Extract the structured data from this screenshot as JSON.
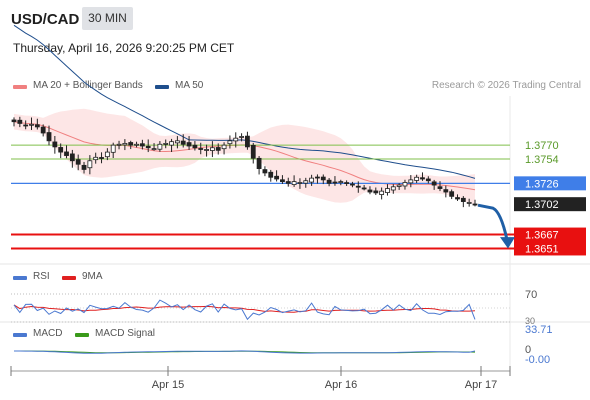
{
  "header": {
    "symbol": "USD/CAD",
    "timeframe": "30 MIN",
    "datetime": "Thursday, April 16, 2026 9:20:25 PM CET"
  },
  "legend": {
    "ma20_label": "MA 20 + Bollinger Bands",
    "ma50_label": "MA 50",
    "credit": "Research © 2026 Trading Central",
    "rsi_label": "RSI",
    "rsi_ma_label": "9MA",
    "macd_label": "MACD",
    "macd_signal_label": "MACD Signal"
  },
  "colors": {
    "ma20": "#f08080",
    "bollinger_fill": "#fde3e3",
    "ma50": "#1f4e8c",
    "resistance": "#7fbf4a",
    "pivot": "#3f7ee8",
    "support": "#e81010",
    "rsi": "#4a78d0",
    "rsi_ma": "#e02020",
    "macd": "#4a78d0",
    "macd_signal": "#3a9a1a",
    "candle_up": "#ffffff",
    "candle_down": "#222222",
    "arrow": "#1f5fa6"
  },
  "chart_data": [
    {
      "type": "candlestick",
      "panel": "price",
      "x_ticks": [
        "Apr 15",
        "Apr 16",
        "Apr 17"
      ],
      "levels": [
        {
          "value": 1.377,
          "label": "1.3770",
          "kind": "resistance"
        },
        {
          "value": 1.3754,
          "label": "1.3754",
          "kind": "resistance"
        },
        {
          "value": 1.3726,
          "label": "1.3726",
          "kind": "pivot"
        },
        {
          "value": 1.3702,
          "label": "1.3702",
          "kind": "last"
        },
        {
          "value": 1.3667,
          "label": "1.3667",
          "kind": "support"
        },
        {
          "value": 1.3651,
          "label": "1.3651",
          "kind": "support"
        }
      ],
      "close": [
        1.3797,
        1.3795,
        1.3793,
        1.3794,
        1.3791,
        1.3784,
        1.3775,
        1.3768,
        1.3762,
        1.3758,
        1.3752,
        1.3748,
        1.3742,
        1.3752,
        1.3756,
        1.3755,
        1.3762,
        1.377,
        1.3771,
        1.3772,
        1.377,
        1.3771,
        1.3769,
        1.3767,
        1.3766,
        1.3771,
        1.3772,
        1.3774,
        1.3775,
        1.3771,
        1.3769,
        1.3767,
        1.3765,
        1.3765,
        1.3767,
        1.3764,
        1.377,
        1.3775,
        1.3778,
        1.378,
        1.3768,
        1.3755,
        1.3743,
        1.3738,
        1.3733,
        1.3731,
        1.3728,
        1.3726,
        1.3728,
        1.3727,
        1.3729,
        1.3732,
        1.3733,
        1.373,
        1.3726,
        1.3727,
        1.3728,
        1.3726,
        1.3724,
        1.3722,
        1.372,
        1.3716,
        1.3715,
        1.3717,
        1.372,
        1.3722,
        1.3724,
        1.3727,
        1.373,
        1.3733,
        1.3731,
        1.3729,
        1.3724,
        1.372,
        1.3716,
        1.3711,
        1.3708,
        1.3705,
        1.3704,
        1.3702
      ]
    },
    {
      "type": "line",
      "panel": "rsi",
      "ref_levels": [
        70,
        30
      ],
      "ref_labels": [
        "70",
        "30"
      ],
      "last_value": 33.71,
      "last_label": "33.71"
    },
    {
      "type": "line",
      "panel": "macd",
      "ref_labels": [
        "0"
      ],
      "last_value": -0.0,
      "last_label": "-0.00"
    }
  ]
}
